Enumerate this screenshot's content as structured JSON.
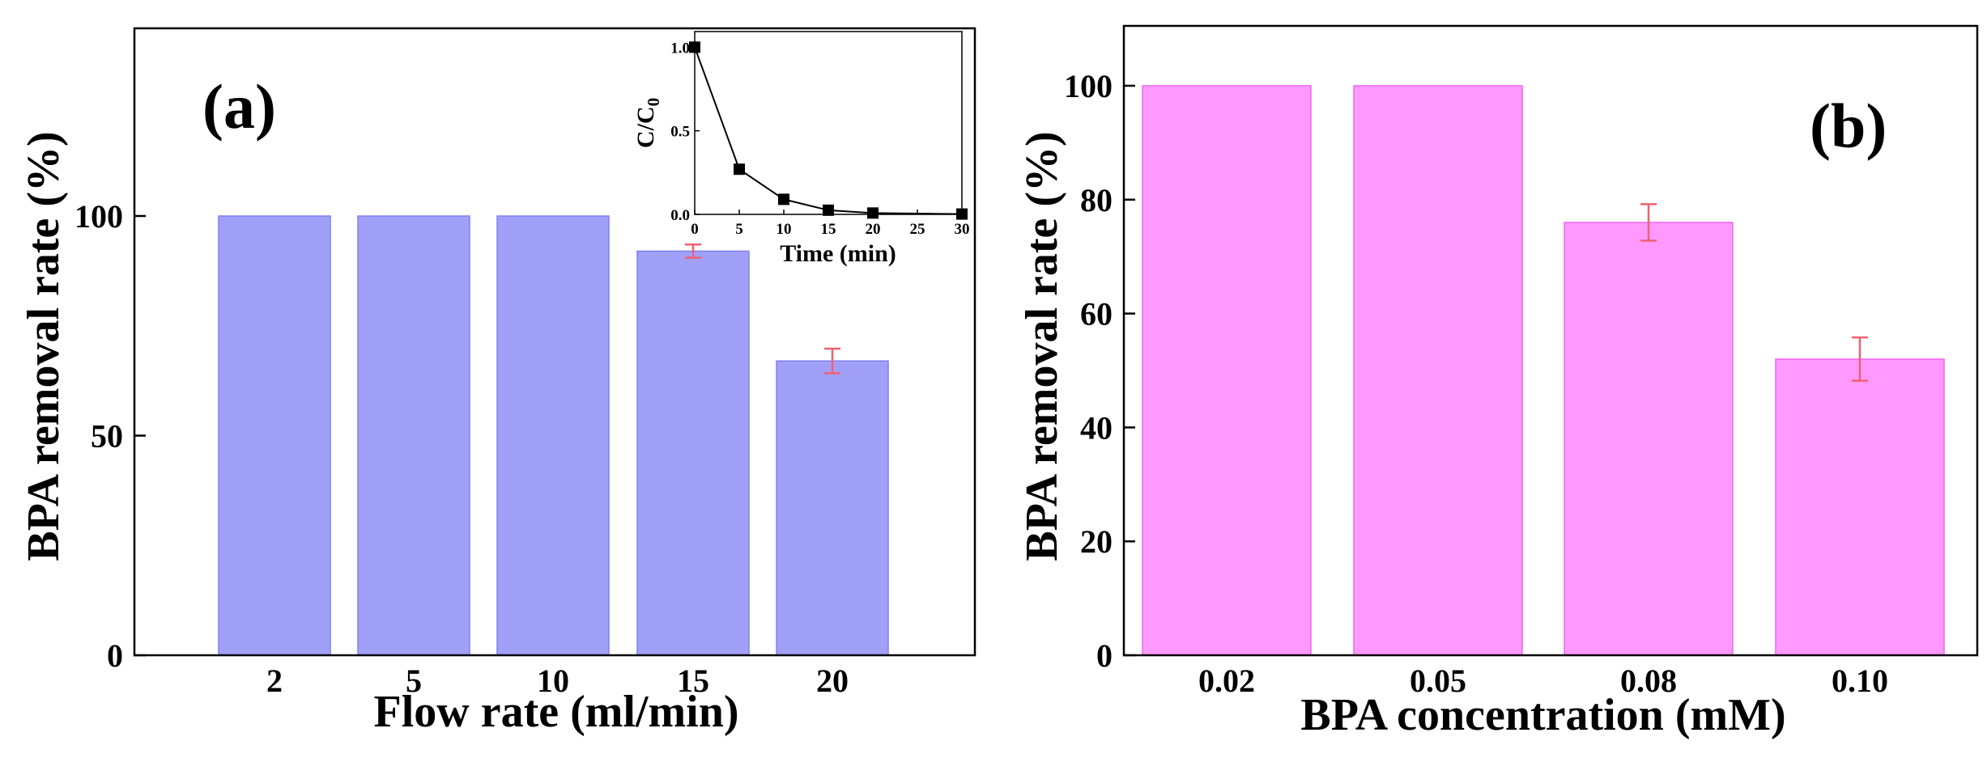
{
  "colors": {
    "bar_a": "#a0a0f8",
    "bar_a_edge": "#8080f0",
    "bar_b": "#ff99ff",
    "bar_b_edge": "#ee66ee",
    "error": "#f06070",
    "axis": "#000000",
    "marker": "#000000"
  },
  "chart_data": [
    {
      "panel_label": "(a)",
      "type": "bar",
      "title": "",
      "xlabel": "Flow rate (ml/min)",
      "ylabel": "BPA removal rate (%)",
      "categories": [
        "2",
        "5",
        "10",
        "15",
        "20"
      ],
      "values": [
        100,
        100,
        100,
        92,
        67
      ],
      "errors": [
        0,
        0,
        0,
        1.5,
        2.8
      ],
      "ylim": [
        0,
        140
      ],
      "yticks": [
        0,
        50,
        100
      ],
      "grid": false,
      "inset": {
        "type": "line",
        "xlabel": "Time (min)",
        "ylabel_base": "C/C",
        "ylabel_sub": "0",
        "x": [
          0,
          5,
          10,
          15,
          20,
          30
        ],
        "y": [
          1.0,
          0.27,
          0.09,
          0.025,
          0.008,
          0.002
        ],
        "xlim": [
          0,
          30
        ],
        "ylim": [
          0,
          1.05
        ],
        "xticks": [
          0,
          5,
          10,
          15,
          20,
          25,
          30
        ],
        "yticks": [
          "0.0",
          "0.5",
          "1.0"
        ]
      }
    },
    {
      "panel_label": "(b)",
      "type": "bar",
      "title": "",
      "xlabel": "BPA concentration (mM)",
      "ylabel": "BPA removal rate (%)",
      "categories": [
        "0.02",
        "0.05",
        "0.08",
        "0.10"
      ],
      "values": [
        100,
        100,
        76,
        52
      ],
      "errors": [
        0,
        0,
        3.2,
        3.8
      ],
      "ylim": [
        0,
        110
      ],
      "yticks": [
        0,
        20,
        40,
        60,
        80,
        100
      ],
      "grid": false
    }
  ]
}
